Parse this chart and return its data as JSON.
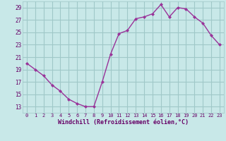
{
  "x": [
    0,
    1,
    2,
    3,
    4,
    5,
    6,
    7,
    8,
    9,
    10,
    11,
    12,
    13,
    14,
    15,
    16,
    17,
    18,
    19,
    20,
    21,
    22,
    23
  ],
  "y": [
    20.0,
    19.0,
    18.0,
    16.5,
    15.5,
    14.2,
    13.5,
    13.0,
    13.0,
    17.0,
    21.5,
    24.8,
    25.3,
    27.2,
    27.5,
    28.0,
    29.5,
    27.5,
    29.0,
    28.8,
    27.5,
    26.5,
    24.5,
    23.0
  ],
  "line_color": "#993399",
  "marker": "D",
  "marker_size": 2,
  "bg_color": "#c8e8e8",
  "grid_color": "#a0c8c8",
  "xlabel": "Windchill (Refroidissement éolien,°C)",
  "xlabel_color": "#660066",
  "tick_color": "#660066",
  "ylim": [
    12,
    30
  ],
  "xlim": [
    -0.5,
    23.5
  ],
  "yticks": [
    13,
    15,
    17,
    19,
    21,
    23,
    25,
    27,
    29
  ],
  "xticks": [
    0,
    1,
    2,
    3,
    4,
    5,
    6,
    7,
    8,
    9,
    10,
    11,
    12,
    13,
    14,
    15,
    16,
    17,
    18,
    19,
    20,
    21,
    22,
    23
  ]
}
